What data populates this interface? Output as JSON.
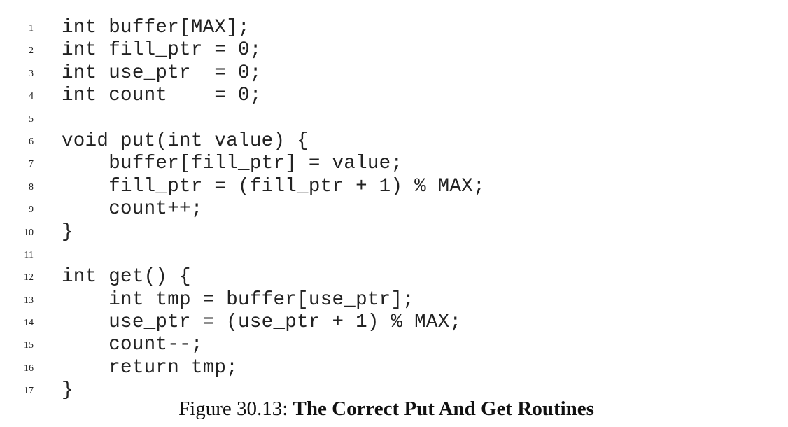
{
  "code": {
    "lines": [
      {
        "n": "1",
        "text": "int buffer[MAX];"
      },
      {
        "n": "2",
        "text": "int fill_ptr = 0;"
      },
      {
        "n": "3",
        "text": "int use_ptr  = 0;"
      },
      {
        "n": "4",
        "text": "int count    = 0;"
      },
      {
        "n": "5",
        "text": ""
      },
      {
        "n": "6",
        "text": "void put(int value) {"
      },
      {
        "n": "7",
        "text": "    buffer[fill_ptr] = value;"
      },
      {
        "n": "8",
        "text": "    fill_ptr = (fill_ptr + 1) % MAX;"
      },
      {
        "n": "9",
        "text": "    count++;"
      },
      {
        "n": "10",
        "text": "}"
      },
      {
        "n": "11",
        "text": ""
      },
      {
        "n": "12",
        "text": "int get() {"
      },
      {
        "n": "13",
        "text": "    int tmp = buffer[use_ptr];"
      },
      {
        "n": "14",
        "text": "    use_ptr = (use_ptr + 1) % MAX;"
      },
      {
        "n": "15",
        "text": "    count--;"
      },
      {
        "n": "16",
        "text": "    return tmp;"
      },
      {
        "n": "17",
        "text": "}"
      }
    ]
  },
  "caption": {
    "label": "Figure 30.13:",
    "title": "The Correct Put And Get Routines"
  }
}
